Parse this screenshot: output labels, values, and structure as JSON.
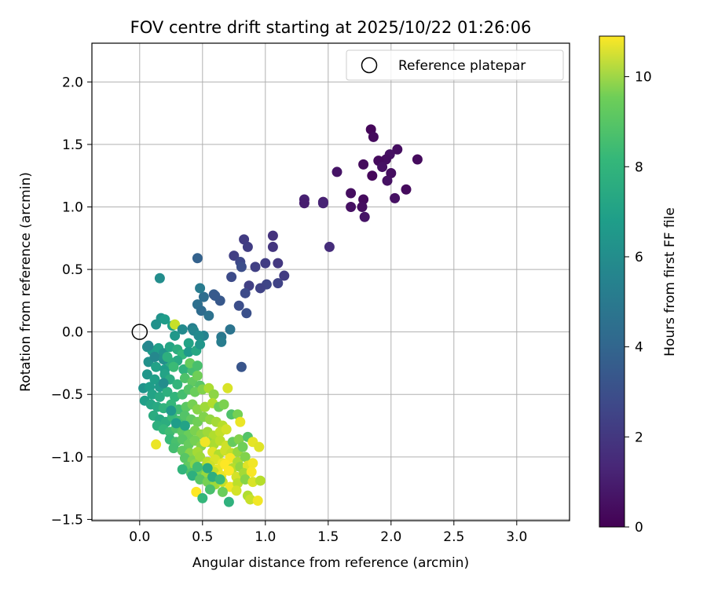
{
  "chart_data": {
    "type": "scatter",
    "title": "FOV centre drift starting at 2025/10/22 01:26:06",
    "xlabel": "Angular distance from reference (arcmin)",
    "ylabel": "Rotation from reference (arcmin)",
    "xlim": [
      -0.38,
      3.42
    ],
    "ylim": [
      -1.51,
      2.31
    ],
    "xticks": [
      "0.0",
      "0.5",
      "1.0",
      "1.5",
      "2.0",
      "2.5",
      "3.0"
    ],
    "yticks": [
      "−1.5",
      "−1.0",
      "−0.5",
      "0.0",
      "0.5",
      "1.0",
      "1.5",
      "2.0"
    ],
    "grid": true,
    "legend": {
      "position": "top-right",
      "label": "Reference platepar"
    },
    "reference_point": {
      "x": 0.0,
      "y": 0.0
    },
    "colorbar": {
      "label": "Hours from first FF file",
      "range": [
        0,
        10.9
      ],
      "ticks": [
        "0",
        "2",
        "4",
        "6",
        "8",
        "10"
      ],
      "colormap": "viridis"
    },
    "points": [
      [
        1.84,
        1.62,
        0.2
      ],
      [
        1.86,
        1.56,
        0.3
      ],
      [
        2.05,
        1.46,
        0.4
      ],
      [
        2.21,
        1.38,
        0.3
      ],
      [
        1.99,
        1.42,
        0.5
      ],
      [
        1.96,
        1.38,
        0.4
      ],
      [
        1.9,
        1.37,
        0.3
      ],
      [
        1.93,
        1.32,
        0.5
      ],
      [
        2.0,
        1.27,
        0.4
      ],
      [
        1.78,
        1.34,
        0.3
      ],
      [
        1.85,
        1.25,
        0.2
      ],
      [
        1.97,
        1.21,
        0.5
      ],
      [
        1.57,
        1.28,
        0.6
      ],
      [
        2.12,
        1.14,
        0.3
      ],
      [
        1.68,
        1.11,
        0.4
      ],
      [
        1.78,
        1.06,
        0.3
      ],
      [
        1.68,
        1.0,
        0.5
      ],
      [
        1.77,
        1.0,
        0.4
      ],
      [
        1.79,
        0.92,
        0.6
      ],
      [
        2.03,
        1.07,
        0.5
      ],
      [
        1.31,
        1.06,
        1.0
      ],
      [
        1.31,
        1.03,
        0.9
      ],
      [
        1.46,
        1.04,
        0.9
      ],
      [
        1.46,
        1.03,
        1.1
      ],
      [
        1.51,
        0.68,
        1.4
      ],
      [
        1.06,
        0.77,
        1.6
      ],
      [
        1.06,
        0.68,
        1.7
      ],
      [
        0.83,
        0.74,
        1.9
      ],
      [
        0.86,
        0.68,
        2.0
      ],
      [
        0.75,
        0.61,
        2.1
      ],
      [
        1.1,
        0.55,
        1.8
      ],
      [
        1.0,
        0.55,
        2.0
      ],
      [
        0.92,
        0.52,
        2.1
      ],
      [
        1.15,
        0.45,
        1.9
      ],
      [
        0.8,
        0.56,
        2.4
      ],
      [
        0.81,
        0.52,
        2.6
      ],
      [
        0.73,
        0.44,
        2.5
      ],
      [
        0.87,
        0.37,
        2.1
      ],
      [
        1.1,
        0.39,
        2.2
      ],
      [
        1.01,
        0.38,
        2.3
      ],
      [
        0.96,
        0.35,
        2.2
      ],
      [
        0.84,
        0.31,
        2.5
      ],
      [
        0.79,
        0.21,
        2.6
      ],
      [
        0.85,
        0.15,
        2.7
      ],
      [
        0.64,
        0.25,
        3.0
      ],
      [
        0.59,
        0.3,
        3.2
      ],
      [
        0.6,
        0.29,
        3.1
      ],
      [
        0.46,
        0.59,
        3.4
      ],
      [
        0.51,
        0.28,
        3.9
      ],
      [
        0.46,
        0.22,
        4.0
      ],
      [
        0.49,
        0.17,
        3.8
      ],
      [
        0.55,
        0.13,
        4.1
      ],
      [
        0.48,
        0.35,
        4.5
      ],
      [
        0.72,
        0.02,
        4.2
      ],
      [
        0.65,
        -0.04,
        4.4
      ],
      [
        0.65,
        -0.08,
        4.6
      ],
      [
        0.81,
        -0.28,
        2.9
      ],
      [
        0.16,
        0.43,
        5.3
      ],
      [
        0.17,
        0.11,
        5.6
      ],
      [
        0.2,
        0.1,
        6.0
      ],
      [
        0.13,
        0.06,
        5.5
      ],
      [
        0.26,
        0.05,
        6.2
      ],
      [
        0.28,
        0.06,
        10.0
      ],
      [
        0.34,
        0.02,
        5.2
      ],
      [
        0.42,
        0.03,
        4.7
      ],
      [
        0.43,
        0.01,
        5.0
      ],
      [
        0.51,
        -0.03,
        4.9
      ],
      [
        0.47,
        -0.03,
        5.2
      ],
      [
        0.28,
        -0.03,
        5.8
      ],
      [
        0.39,
        -0.09,
        6.3
      ],
      [
        0.06,
        -0.12,
        5.4
      ],
      [
        0.1,
        -0.15,
        5.9
      ],
      [
        0.15,
        -0.13,
        6.1
      ],
      [
        0.19,
        -0.17,
        5.6
      ],
      [
        0.24,
        -0.12,
        6.4
      ],
      [
        0.3,
        -0.14,
        6.8
      ],
      [
        0.34,
        -0.18,
        7.2
      ],
      [
        0.39,
        -0.16,
        5.9
      ],
      [
        0.45,
        -0.15,
        6.5
      ],
      [
        0.48,
        -0.1,
        5.7
      ],
      [
        0.3,
        -0.23,
        6.6
      ],
      [
        0.07,
        -0.24,
        5.5
      ],
      [
        0.13,
        -0.28,
        6.2
      ],
      [
        0.2,
        -0.3,
        6.0
      ],
      [
        0.24,
        -0.24,
        6.8
      ],
      [
        0.27,
        -0.28,
        7.4
      ],
      [
        0.35,
        -0.3,
        7.0
      ],
      [
        0.42,
        -0.31,
        7.6
      ],
      [
        0.06,
        -0.34,
        5.7
      ],
      [
        0.12,
        -0.38,
        6.1
      ],
      [
        0.16,
        -0.44,
        5.9
      ],
      [
        0.2,
        -0.34,
        6.3
      ],
      [
        0.24,
        -0.38,
        6.7
      ],
      [
        0.3,
        -0.42,
        7.1
      ],
      [
        0.36,
        -0.37,
        7.8
      ],
      [
        0.42,
        -0.4,
        8.2
      ],
      [
        0.46,
        -0.35,
        8.5
      ],
      [
        0.48,
        -0.43,
        8.0
      ],
      [
        0.03,
        -0.45,
        5.6
      ],
      [
        0.08,
        -0.44,
        6.0
      ],
      [
        0.1,
        -0.5,
        6.3
      ],
      [
        0.16,
        -0.52,
        6.6
      ],
      [
        0.22,
        -0.48,
        6.9
      ],
      [
        0.28,
        -0.52,
        7.1
      ],
      [
        0.34,
        -0.5,
        7.6
      ],
      [
        0.39,
        -0.46,
        7.9
      ],
      [
        0.44,
        -0.48,
        8.4
      ],
      [
        0.5,
        -0.46,
        8.8
      ],
      [
        0.55,
        -0.45,
        9.5
      ],
      [
        0.7,
        -0.45,
        10.3
      ],
      [
        0.59,
        -0.5,
        9.0
      ],
      [
        0.04,
        -0.55,
        6.1
      ],
      [
        0.09,
        -0.58,
        6.4
      ],
      [
        0.14,
        -0.6,
        6.6
      ],
      [
        0.19,
        -0.61,
        7.0
      ],
      [
        0.25,
        -0.58,
        7.2
      ],
      [
        0.31,
        -0.62,
        7.5
      ],
      [
        0.37,
        -0.6,
        8.1
      ],
      [
        0.42,
        -0.58,
        8.6
      ],
      [
        0.46,
        -0.62,
        8.9
      ],
      [
        0.52,
        -0.6,
        9.3
      ],
      [
        0.58,
        -0.57,
        9.6
      ],
      [
        0.63,
        -0.6,
        8.4
      ],
      [
        0.67,
        -0.58,
        8.7
      ],
      [
        0.73,
        -0.66,
        7.8
      ],
      [
        0.78,
        -0.66,
        8.6
      ],
      [
        0.11,
        -0.67,
        6.7
      ],
      [
        0.16,
        -0.7,
        6.5
      ],
      [
        0.21,
        -0.72,
        6.8
      ],
      [
        0.26,
        -0.68,
        7.3
      ],
      [
        0.31,
        -0.71,
        7.6
      ],
      [
        0.36,
        -0.67,
        7.9
      ],
      [
        0.41,
        -0.7,
        8.2
      ],
      [
        0.46,
        -0.72,
        8.5
      ],
      [
        0.51,
        -0.68,
        8.8
      ],
      [
        0.56,
        -0.7,
        9.1
      ],
      [
        0.61,
        -0.72,
        9.4
      ],
      [
        0.66,
        -0.75,
        9.7
      ],
      [
        0.14,
        -0.75,
        6.9
      ],
      [
        0.19,
        -0.78,
        7.2
      ],
      [
        0.24,
        -0.8,
        7.5
      ],
      [
        0.29,
        -0.77,
        7.8
      ],
      [
        0.34,
        -0.8,
        8.1
      ],
      [
        0.39,
        -0.82,
        8.4
      ],
      [
        0.44,
        -0.79,
        8.7
      ],
      [
        0.49,
        -0.82,
        9.0
      ],
      [
        0.54,
        -0.8,
        9.3
      ],
      [
        0.59,
        -0.83,
        9.6
      ],
      [
        0.64,
        -0.8,
        9.9
      ],
      [
        0.69,
        -0.78,
        10.2
      ],
      [
        0.8,
        -0.72,
        10.6
      ],
      [
        0.24,
        -0.86,
        7.3
      ],
      [
        0.29,
        -0.88,
        7.7
      ],
      [
        0.34,
        -0.86,
        8.0
      ],
      [
        0.39,
        -0.9,
        8.3
      ],
      [
        0.44,
        -0.87,
        8.6
      ],
      [
        0.49,
        -0.91,
        8.9
      ],
      [
        0.54,
        -0.88,
        9.2
      ],
      [
        0.59,
        -0.9,
        9.5
      ],
      [
        0.64,
        -0.87,
        9.8
      ],
      [
        0.69,
        -0.91,
        10.1
      ],
      [
        0.74,
        -0.88,
        8.3
      ],
      [
        0.79,
        -0.86,
        8.8
      ],
      [
        0.86,
        -0.84,
        7.9
      ],
      [
        0.13,
        -0.9,
        10.6
      ],
      [
        0.27,
        -0.93,
        7.6
      ],
      [
        0.34,
        -0.95,
        8.2
      ],
      [
        0.4,
        -0.97,
        8.9
      ],
      [
        0.46,
        -0.96,
        9.4
      ],
      [
        0.52,
        -0.88,
        10.7
      ],
      [
        0.58,
        -0.96,
        10.4
      ],
      [
        0.63,
        -0.98,
        9.6
      ],
      [
        0.68,
        -0.95,
        10.1
      ],
      [
        0.73,
        -0.97,
        9.9
      ],
      [
        0.78,
        -0.96,
        9.2
      ],
      [
        0.82,
        -0.92,
        8.5
      ],
      [
        0.9,
        -0.88,
        10.5
      ],
      [
        0.95,
        -0.92,
        10.4
      ],
      [
        0.36,
        -1.01,
        8.0
      ],
      [
        0.42,
        -1.03,
        8.7
      ],
      [
        0.48,
        -1.0,
        9.3
      ],
      [
        0.54,
        -1.04,
        9.8
      ],
      [
        0.6,
        -1.02,
        10.3
      ],
      [
        0.66,
        -1.05,
        10.6
      ],
      [
        0.72,
        -1.01,
        10.8
      ],
      [
        0.78,
        -1.04,
        9.5
      ],
      [
        0.84,
        -1.0,
        8.8
      ],
      [
        0.38,
        -1.08,
        8.2
      ],
      [
        0.44,
        -1.06,
        9.0
      ],
      [
        0.5,
        -1.09,
        9.5
      ],
      [
        0.56,
        -1.07,
        10.1
      ],
      [
        0.62,
        -1.1,
        10.5
      ],
      [
        0.68,
        -1.06,
        10.9
      ],
      [
        0.74,
        -1.09,
        9.7
      ],
      [
        0.8,
        -1.08,
        9.1
      ],
      [
        0.86,
        -1.07,
        10.4
      ],
      [
        0.9,
        -1.05,
        10.7
      ],
      [
        0.34,
        -1.1,
        7.1
      ],
      [
        0.41,
        -1.13,
        7.8
      ],
      [
        0.47,
        -1.11,
        8.5
      ],
      [
        0.53,
        -1.14,
        9.2
      ],
      [
        0.59,
        -1.12,
        9.9
      ],
      [
        0.65,
        -1.15,
        10.6
      ],
      [
        0.71,
        -1.11,
        10.9
      ],
      [
        0.77,
        -1.16,
        10.2
      ],
      [
        0.83,
        -1.13,
        9.4
      ],
      [
        0.89,
        -1.12,
        10.8
      ],
      [
        0.42,
        -1.15,
        6.9
      ],
      [
        0.48,
        -1.18,
        8.0
      ],
      [
        0.54,
        -1.2,
        8.6
      ],
      [
        0.6,
        -1.22,
        9.3
      ],
      [
        0.66,
        -1.2,
        10.0
      ],
      [
        0.72,
        -1.24,
        10.7
      ],
      [
        0.78,
        -1.21,
        9.8
      ],
      [
        0.84,
        -1.18,
        8.9
      ],
      [
        0.9,
        -1.2,
        10.3
      ],
      [
        0.96,
        -1.19,
        9.7
      ],
      [
        0.45,
        -1.28,
        10.9
      ],
      [
        0.5,
        -1.33,
        7.2
      ],
      [
        0.56,
        -1.26,
        7.7
      ],
      [
        0.66,
        -1.28,
        8.4
      ],
      [
        0.71,
        -1.36,
        7.0
      ],
      [
        0.77,
        -1.27,
        10.2
      ],
      [
        0.86,
        -1.31,
        9.6
      ],
      [
        0.88,
        -1.34,
        10.0
      ],
      [
        0.94,
        -1.35,
        10.7
      ],
      [
        0.58,
        -1.16,
        6.8
      ],
      [
        0.64,
        -1.18,
        7.4
      ],
      [
        0.54,
        -1.09,
        6.6
      ],
      [
        0.46,
        -1.08,
        7.5
      ],
      [
        0.29,
        -0.73,
        6.0
      ],
      [
        0.36,
        -0.75,
        6.3
      ],
      [
        0.25,
        -0.63,
        5.8
      ],
      [
        0.19,
        -0.41,
        5.3
      ],
      [
        0.12,
        -0.2,
        5.1
      ],
      [
        0.07,
        -0.11,
        5.0
      ],
      [
        0.19,
        -0.22,
        5.4
      ],
      [
        0.22,
        -0.2,
        6.9
      ],
      [
        0.4,
        -0.25,
        8.3
      ],
      [
        0.46,
        -0.27,
        7.7
      ]
    ]
  }
}
